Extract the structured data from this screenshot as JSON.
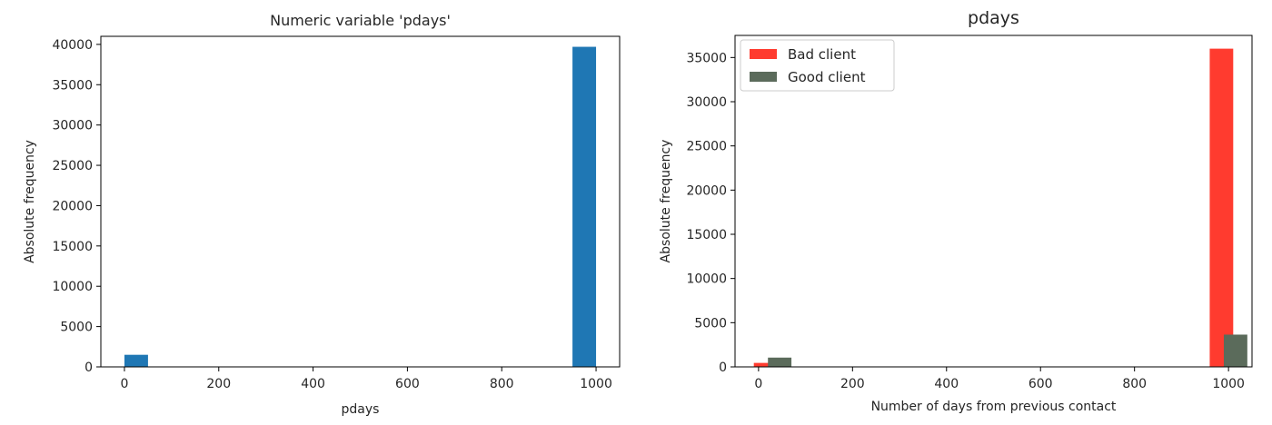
{
  "chart_data": [
    {
      "type": "bar",
      "title": "Numeric variable 'pdays'",
      "xlabel": "pdays",
      "ylabel": "Absolute frequency",
      "xlim": [
        -50,
        1050
      ],
      "ylim": [
        0,
        41000
      ],
      "xticks": [
        0,
        200,
        400,
        600,
        800,
        1000
      ],
      "yticks": [
        0,
        5000,
        10000,
        15000,
        20000,
        25000,
        30000,
        35000,
        40000
      ],
      "grid": false,
      "bin_width": 50,
      "series": [
        {
          "color": "#1f77b4",
          "bars": [
            {
              "x": 0,
              "value": 1500
            },
            {
              "x": 950,
              "value": 39700
            }
          ]
        }
      ]
    },
    {
      "type": "bar",
      "title": "pdays",
      "xlabel": "Number of days from previous contact",
      "ylabel": "Absolute frequency",
      "xlim": [
        -50,
        1050
      ],
      "ylim": [
        0,
        37500
      ],
      "xticks": [
        0,
        200,
        400,
        600,
        800,
        1000
      ],
      "yticks": [
        0,
        5000,
        10000,
        15000,
        20000,
        25000,
        30000,
        35000
      ],
      "grid": false,
      "legend_position": "top-left",
      "bin_width": 50,
      "series": [
        {
          "name": "Bad client",
          "color": "#ff3b2f",
          "bars": [
            {
              "x": -10,
              "value": 450
            },
            {
              "x": 960,
              "value": 36000
            }
          ]
        },
        {
          "name": "Good client",
          "color": "#5b6b5b",
          "bars": [
            {
              "x": 20,
              "value": 1050
            },
            {
              "x": 990,
              "value": 3650
            }
          ]
        }
      ]
    }
  ]
}
